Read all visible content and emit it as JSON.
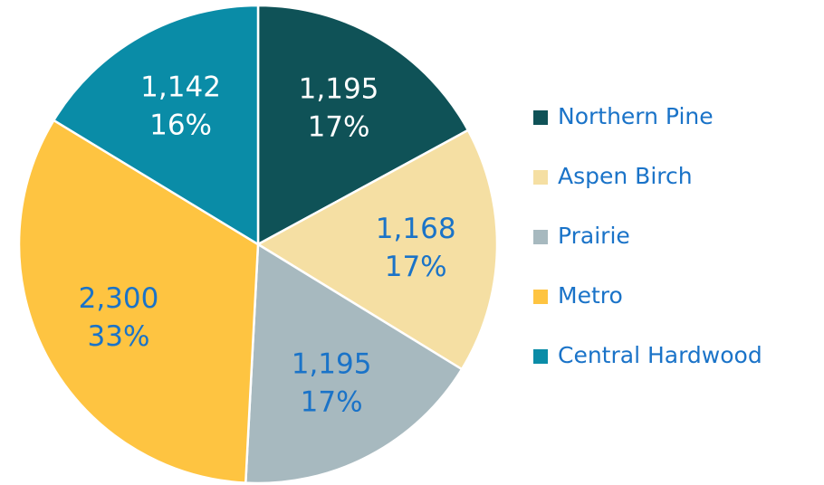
{
  "chart_data": {
    "type": "pie",
    "categories": [
      "Northern Pine",
      "Aspen Birch",
      "Prairie",
      "Metro",
      "Central Hardwood"
    ],
    "values": [
      1195,
      1168,
      1195,
      2300,
      1142
    ],
    "value_labels": [
      "1,195",
      "1,168",
      "1,195",
      "2,300",
      "1,142"
    ],
    "percent_labels": [
      "17%",
      "17%",
      "17%",
      "33%",
      "16%"
    ],
    "colors": [
      "#0f5257",
      "#f5dfa3",
      "#a7b9bf",
      "#fec441",
      "#0a8ca7"
    ],
    "legend": "right"
  }
}
